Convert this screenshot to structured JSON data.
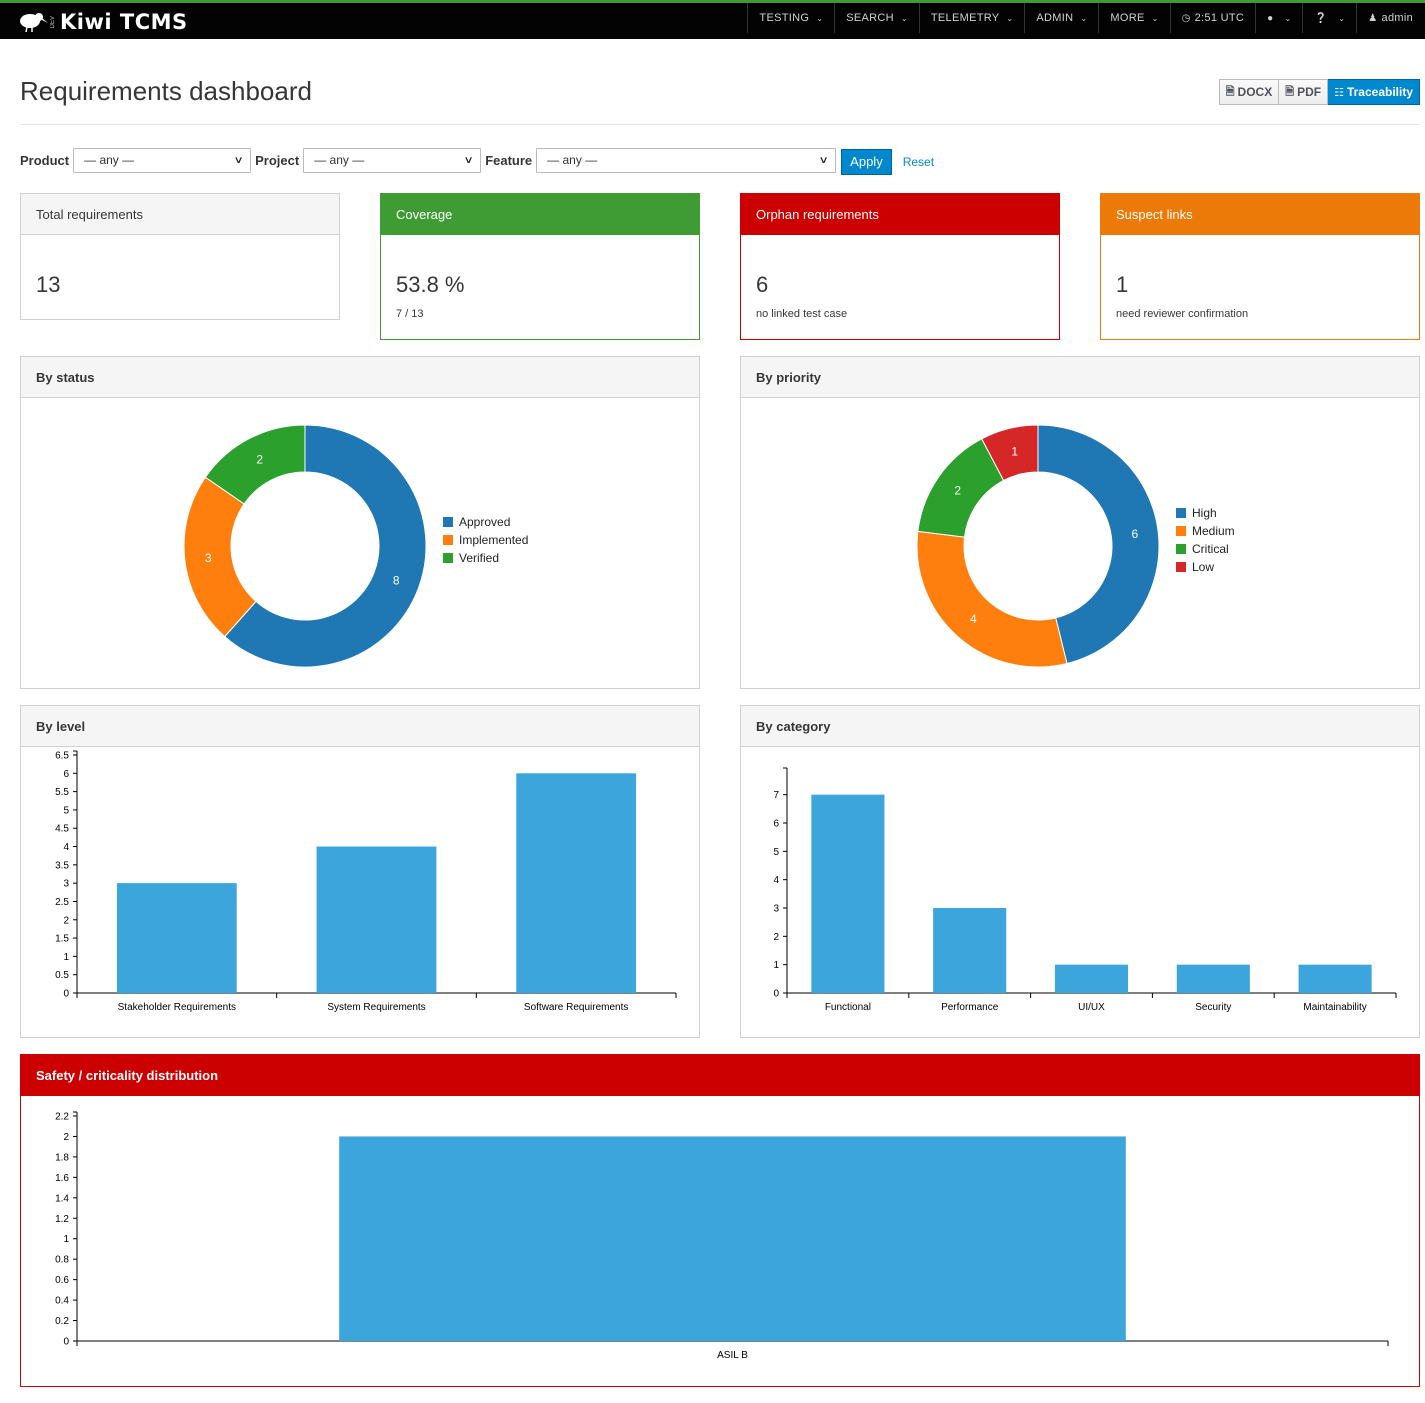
{
  "brand": {
    "name": "Kiwi TCMS",
    "tag": "DEV"
  },
  "nav": {
    "items": [
      {
        "label": "TESTING"
      },
      {
        "label": "SEARCH"
      },
      {
        "label": "TELEMETRY"
      },
      {
        "label": "ADMIN"
      },
      {
        "label": "MORE"
      }
    ],
    "clock": "2:51 UTC",
    "user": "admin"
  },
  "page": {
    "title": "Requirements dashboard",
    "export": {
      "docx": "DOCX",
      "pdf": "PDF",
      "traceability": "Traceability"
    }
  },
  "filters": {
    "product_label": "Product",
    "product_value": "— any —",
    "project_label": "Project",
    "project_value": "— any —",
    "feature_label": "Feature",
    "feature_value": "— any —",
    "apply": "Apply",
    "reset": "Reset"
  },
  "stats": {
    "total": {
      "title": "Total requirements",
      "value": "13"
    },
    "coverage": {
      "title": "Coverage",
      "value": "53.8 %",
      "sub": "7 / 13"
    },
    "orphan": {
      "title": "Orphan requirements",
      "value": "6",
      "sub": "no linked test case"
    },
    "suspect": {
      "title": "Suspect links",
      "value": "1",
      "sub": "need reviewer confirmation"
    }
  },
  "colors": {
    "blue": "#1f77b4",
    "orange": "#ff7f0e",
    "green": "#2ca02c",
    "red": "#d62728",
    "bar": "#3ca5dc"
  },
  "chart_data": [
    {
      "type": "pie",
      "title": "By status",
      "categories": [
        "Approved",
        "Implemented",
        "Verified"
      ],
      "values": [
        8,
        3,
        2
      ],
      "legend": "right"
    },
    {
      "type": "pie",
      "title": "By priority",
      "categories": [
        "High",
        "Medium",
        "Critical",
        "Low"
      ],
      "values": [
        6,
        4,
        2,
        1
      ],
      "legend": "right"
    },
    {
      "type": "bar",
      "title": "By level",
      "categories": [
        "Stakeholder Requirements",
        "System Requirements",
        "Software Requirements"
      ],
      "values": [
        3,
        4,
        6
      ],
      "ylim": [
        0,
        6.5
      ],
      "yticks": [
        "0",
        "0.5",
        "1",
        "1.5",
        "2",
        "2.5",
        "3",
        "3.5",
        "4",
        "4.5",
        "5",
        "5.5",
        "6",
        "6.5"
      ]
    },
    {
      "type": "bar",
      "title": "By category",
      "categories": [
        "Functional",
        "Performance",
        "UI/UX",
        "Security",
        "Maintainability"
      ],
      "values": [
        7,
        3,
        1,
        1,
        1
      ],
      "ylim": [
        0,
        7.8
      ],
      "yticks": [
        "0",
        "1",
        "2",
        "3",
        "4",
        "5",
        "6",
        "7"
      ]
    },
    {
      "type": "bar",
      "title": "Safety / criticality distribution",
      "categories": [
        "ASIL B"
      ],
      "values": [
        2
      ],
      "ylim": [
        0,
        2.2
      ],
      "yticks": [
        "0",
        "0.2",
        "0.4",
        "0.6",
        "0.8",
        "1",
        "1.2",
        "1.4",
        "1.6",
        "1.8",
        "2",
        "2.2"
      ]
    }
  ]
}
